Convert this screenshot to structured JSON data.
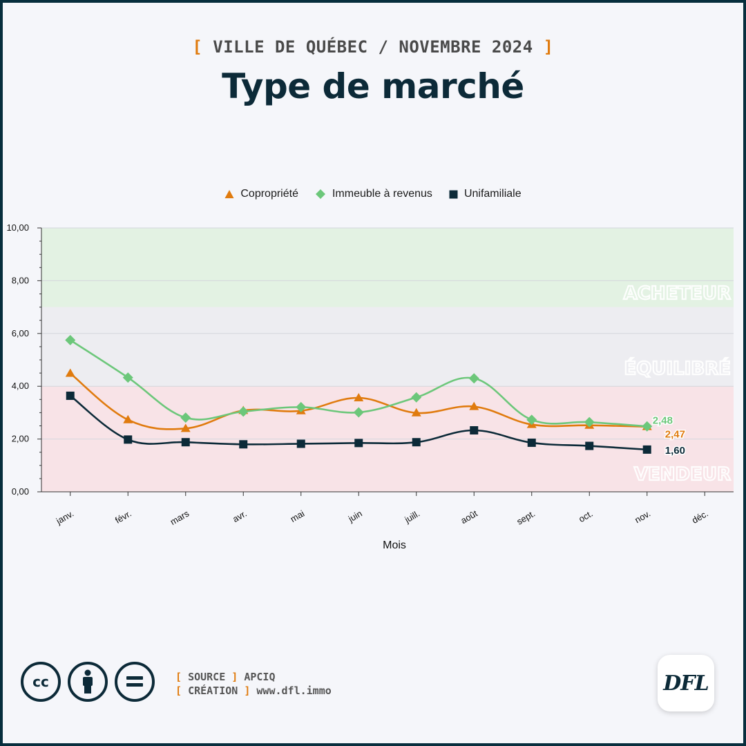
{
  "header": {
    "bracket_open": "[",
    "kicker": "VILLE DE QUÉBEC / NOVEMBRE 2024",
    "bracket_close": "]",
    "title": "Type de marché"
  },
  "colors": {
    "accent": "#e07b0e",
    "navy": "#0c2a38",
    "copro": "#e07b0e",
    "revenus": "#6cc77a",
    "unifamiliale": "#0c2a38"
  },
  "chart_data": {
    "type": "line",
    "categories": [
      "janv.",
      "févr.",
      "mars",
      "avr.",
      "mai",
      "juin",
      "juill.",
      "août",
      "sept.",
      "oct.",
      "nov.",
      "déc."
    ],
    "xlabel": "Mois",
    "ylabel": "",
    "ylim": [
      0,
      10
    ],
    "yticks": [
      "0,00",
      "2,00",
      "4,00",
      "6,00",
      "8,00",
      "10,00"
    ],
    "grid": true,
    "legend_position": "top-center",
    "zones": [
      {
        "label": "ACHETEUR",
        "from": 7,
        "to": 10,
        "color": "#e3f2e3"
      },
      {
        "label": "ÉQUILIBRÉ",
        "from": 4,
        "to": 7,
        "color": "#ededf1"
      },
      {
        "label": "VENDEUR",
        "from": 0,
        "to": 4,
        "color": "#f8e3e7"
      }
    ],
    "series": [
      {
        "name": "Copropriété",
        "color": "#e07b0e",
        "marker": "triangle",
        "values": [
          4.49,
          2.73,
          2.4,
          3.08,
          3.07,
          3.56,
          2.99,
          3.23,
          2.55,
          2.52,
          2.47,
          null
        ],
        "end_label": "2,47"
      },
      {
        "name": "Immeuble à revenus",
        "color": "#6cc77a",
        "marker": "diamond",
        "values": [
          5.75,
          4.33,
          2.81,
          3.04,
          3.21,
          3.01,
          3.58,
          4.3,
          2.73,
          2.64,
          2.48,
          null
        ],
        "end_label": "2,48"
      },
      {
        "name": "Unifamiliale",
        "color": "#0c2a38",
        "marker": "square",
        "values": [
          3.64,
          1.98,
          1.88,
          1.8,
          1.82,
          1.85,
          1.88,
          2.33,
          1.86,
          1.74,
          1.6,
          null
        ],
        "end_label": "1,60"
      }
    ]
  },
  "footer": {
    "cc_label": "cc",
    "source_label": "SOURCE",
    "source_value": "APCIQ",
    "creation_label": "CRÉATION",
    "creation_value": "www.dfl.immo",
    "logo": "DFL"
  }
}
